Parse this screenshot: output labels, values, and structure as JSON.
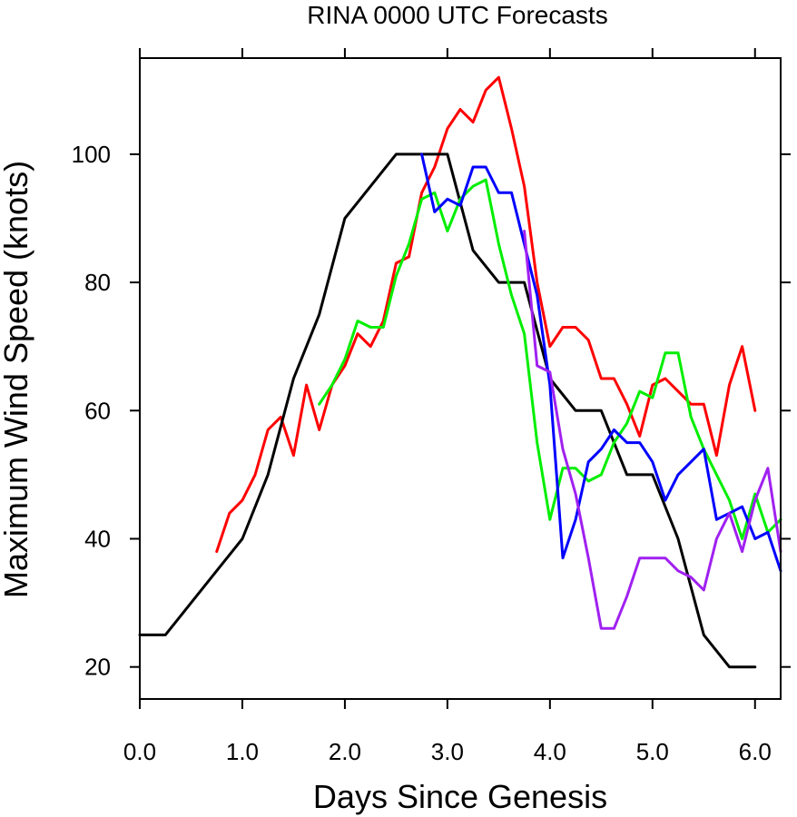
{
  "chart_data": {
    "type": "line",
    "title": "RINA 0000 UTC Forecasts",
    "xlabel": "Days Since Genesis",
    "ylabel": "Maximum Wind Speed (knots)",
    "xlim": [
      0,
      6.25
    ],
    "ylim": [
      15,
      115
    ],
    "x_ticks": [
      0,
      1,
      2,
      3,
      4,
      5,
      6
    ],
    "x_tick_labels": [
      "0.0",
      "1.0",
      "2.0",
      "3.0",
      "4.0",
      "5.0",
      "6.0"
    ],
    "y_ticks": [
      20,
      40,
      60,
      80,
      100
    ],
    "y_tick_labels": [
      "20",
      "40",
      "60",
      "80",
      "100"
    ],
    "grid": false,
    "legend": "none",
    "series": [
      {
        "color": "#ff0000",
        "points": [
          [
            0.75,
            38
          ],
          [
            0.875,
            44
          ],
          [
            1.0,
            46
          ],
          [
            1.125,
            50
          ],
          [
            1.25,
            57
          ],
          [
            1.375,
            59
          ],
          [
            1.5,
            53
          ],
          [
            1.625,
            64
          ],
          [
            1.75,
            57
          ],
          [
            1.875,
            64
          ],
          [
            2.0,
            67
          ],
          [
            2.125,
            72
          ],
          [
            2.25,
            70
          ],
          [
            2.375,
            74
          ],
          [
            2.5,
            83
          ],
          [
            2.625,
            84
          ],
          [
            2.75,
            94
          ],
          [
            2.875,
            98
          ],
          [
            3.0,
            104
          ],
          [
            3.125,
            107
          ],
          [
            3.25,
            105
          ],
          [
            3.375,
            110
          ],
          [
            3.5,
            112
          ],
          [
            3.625,
            104
          ],
          [
            3.75,
            95
          ],
          [
            3.875,
            80
          ],
          [
            4.0,
            70
          ],
          [
            4.125,
            73
          ],
          [
            4.25,
            73
          ],
          [
            4.375,
            71
          ],
          [
            4.5,
            65
          ],
          [
            4.625,
            65
          ],
          [
            4.75,
            61
          ],
          [
            4.875,
            56
          ],
          [
            5.0,
            64
          ],
          [
            5.125,
            65
          ],
          [
            5.25,
            63
          ],
          [
            5.375,
            61
          ],
          [
            5.5,
            61
          ],
          [
            5.625,
            53
          ],
          [
            5.75,
            64
          ],
          [
            5.875,
            70
          ],
          [
            6.0,
            60
          ]
        ]
      },
      {
        "color": "#000000",
        "points": [
          [
            0.0,
            25
          ],
          [
            0.25,
            25
          ],
          [
            0.5,
            30
          ],
          [
            0.75,
            35
          ],
          [
            1.0,
            40
          ],
          [
            1.25,
            50
          ],
          [
            1.5,
            65
          ],
          [
            1.75,
            75
          ],
          [
            2.0,
            90
          ],
          [
            2.25,
            95
          ],
          [
            2.5,
            100
          ],
          [
            2.75,
            100
          ],
          [
            3.0,
            100
          ],
          [
            3.25,
            85
          ],
          [
            3.5,
            80
          ],
          [
            3.75,
            80
          ],
          [
            4.0,
            65
          ],
          [
            4.25,
            60
          ],
          [
            4.5,
            60
          ],
          [
            4.75,
            50
          ],
          [
            5.0,
            50
          ],
          [
            5.25,
            40
          ],
          [
            5.5,
            25
          ],
          [
            5.75,
            20
          ],
          [
            6.0,
            20
          ]
        ]
      },
      {
        "color": "#00ee00",
        "points": [
          [
            1.75,
            61
          ],
          [
            1.875,
            64
          ],
          [
            2.0,
            68
          ],
          [
            2.125,
            74
          ],
          [
            2.25,
            73
          ],
          [
            2.375,
            73
          ],
          [
            2.5,
            81
          ],
          [
            2.625,
            86
          ],
          [
            2.75,
            93
          ],
          [
            2.875,
            94
          ],
          [
            3.0,
            88
          ],
          [
            3.125,
            93
          ],
          [
            3.25,
            95
          ],
          [
            3.375,
            96
          ],
          [
            3.5,
            86
          ],
          [
            3.625,
            78
          ],
          [
            3.75,
            72
          ],
          [
            3.875,
            55
          ],
          [
            4.0,
            43
          ],
          [
            4.125,
            51
          ],
          [
            4.25,
            51
          ],
          [
            4.375,
            49
          ],
          [
            4.5,
            50
          ],
          [
            4.625,
            55
          ],
          [
            4.75,
            58
          ],
          [
            4.875,
            63
          ],
          [
            5.0,
            62
          ],
          [
            5.125,
            69
          ],
          [
            5.25,
            69
          ],
          [
            5.375,
            59
          ],
          [
            5.5,
            54
          ],
          [
            5.625,
            50
          ],
          [
            5.75,
            46
          ],
          [
            5.875,
            40
          ],
          [
            6.0,
            47
          ],
          [
            6.125,
            41
          ],
          [
            6.25,
            43
          ]
        ]
      },
      {
        "color": "#0000ff",
        "points": [
          [
            2.75,
            100
          ],
          [
            2.875,
            91
          ],
          [
            3.0,
            93
          ],
          [
            3.125,
            92
          ],
          [
            3.25,
            98
          ],
          [
            3.375,
            98
          ],
          [
            3.5,
            94
          ],
          [
            3.625,
            94
          ],
          [
            3.75,
            86
          ],
          [
            3.875,
            78
          ],
          [
            4.0,
            64
          ],
          [
            4.125,
            37
          ],
          [
            4.25,
            43
          ],
          [
            4.375,
            52
          ],
          [
            4.5,
            54
          ],
          [
            4.625,
            57
          ],
          [
            4.75,
            55
          ],
          [
            4.875,
            55
          ],
          [
            5.0,
            52
          ],
          [
            5.125,
            46
          ],
          [
            5.25,
            50
          ],
          [
            5.375,
            52
          ],
          [
            5.5,
            54
          ],
          [
            5.625,
            43
          ],
          [
            5.75,
            44
          ],
          [
            5.875,
            45
          ],
          [
            6.0,
            40
          ],
          [
            6.125,
            41
          ],
          [
            6.25,
            35
          ]
        ]
      },
      {
        "color": "#a020f0",
        "points": [
          [
            3.75,
            88
          ],
          [
            3.875,
            67
          ],
          [
            4.0,
            66
          ],
          [
            4.125,
            54
          ],
          [
            4.25,
            47
          ],
          [
            4.375,
            37
          ],
          [
            4.5,
            26
          ],
          [
            4.625,
            26
          ],
          [
            4.75,
            31
          ],
          [
            4.875,
            37
          ],
          [
            5.0,
            37
          ],
          [
            5.125,
            37
          ],
          [
            5.25,
            35
          ],
          [
            5.375,
            34
          ],
          [
            5.5,
            32
          ],
          [
            5.625,
            40
          ],
          [
            5.75,
            44
          ],
          [
            5.875,
            38
          ],
          [
            6.0,
            46
          ],
          [
            6.125,
            51
          ],
          [
            6.25,
            38
          ]
        ]
      }
    ]
  }
}
